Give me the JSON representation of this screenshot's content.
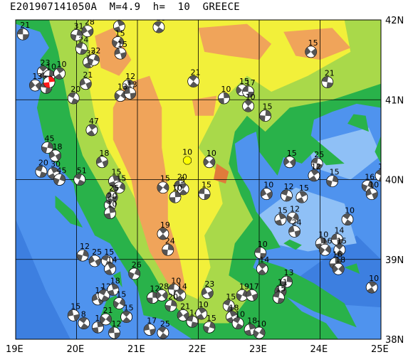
{
  "header": {
    "title": "E201907141050A  M=4.9  h=  10  GREECE"
  },
  "map": {
    "lon_min": 19,
    "lon_max": 25,
    "lat_min": 38,
    "lat_max": 42,
    "lon_labels": [
      "19E",
      "20E",
      "21E",
      "22E",
      "23E",
      "24E",
      "25E"
    ],
    "lat_labels": [
      "42N",
      "41N",
      "40N",
      "39N",
      "38N"
    ],
    "colors": {
      "deep_sea": "#3d7fe0",
      "sea": "#4f93ee",
      "shelf": "#8fc0f6",
      "coast": "#bcdcf9",
      "low": "#29b24a",
      "mid": "#a9d94a",
      "high": "#f2f03a",
      "mountain": "#f0a45a",
      "peak": "#e07b3b",
      "beachball_dark": "#555555",
      "beachball_light": "#ffffff",
      "highlight": "#ff1a1a",
      "epicenter": "#ffff00"
    },
    "beachballs": [
      {
        "lon": 19.12,
        "lat": 41.82,
        "label": "21"
      },
      {
        "lon": 19.45,
        "lat": 41.35,
        "label": "23"
      },
      {
        "lon": 19.55,
        "lat": 41.3,
        "label": "10"
      },
      {
        "lon": 19.32,
        "lat": 41.18,
        "label": "13"
      },
      {
        "lon": 19.5,
        "lat": 41.15,
        "label": "12"
      },
      {
        "lon": 19.72,
        "lat": 41.33,
        "label": "10"
      },
      {
        "lon": 20.0,
        "lat": 41.81,
        "label": "31"
      },
      {
        "lon": 20.18,
        "lat": 41.86,
        "label": "28"
      },
      {
        "lon": 20.08,
        "lat": 41.64,
        "label": "24"
      },
      {
        "lon": 20.2,
        "lat": 41.47,
        "label": "32"
      },
      {
        "lon": 20.28,
        "lat": 41.5,
        "label": "22"
      },
      {
        "lon": 20.15,
        "lat": 41.2,
        "label": "21"
      },
      {
        "lon": 19.95,
        "lat": 41.02,
        "label": "20"
      },
      {
        "lon": 20.7,
        "lat": 41.92,
        "label": "19"
      },
      {
        "lon": 20.68,
        "lat": 41.72,
        "label": "15"
      },
      {
        "lon": 20.72,
        "lat": 41.58,
        "label": "15"
      },
      {
        "lon": 21.35,
        "lat": 41.91,
        "label": "18"
      },
      {
        "lon": 20.85,
        "lat": 41.18,
        "label": "12"
      },
      {
        "lon": 20.72,
        "lat": 41.05,
        "label": "13"
      },
      {
        "lon": 20.88,
        "lat": 41.08,
        "label": "13"
      },
      {
        "lon": 21.92,
        "lat": 41.23,
        "label": "21"
      },
      {
        "lon": 22.42,
        "lat": 41.02,
        "label": "10"
      },
      {
        "lon": 22.72,
        "lat": 41.12,
        "label": "15"
      },
      {
        "lon": 22.82,
        "lat": 41.1,
        "label": "17"
      },
      {
        "lon": 22.82,
        "lat": 40.92,
        "label": "10"
      },
      {
        "lon": 23.1,
        "lat": 40.8,
        "label": "15"
      },
      {
        "lon": 23.85,
        "lat": 41.6,
        "label": "15"
      },
      {
        "lon": 24.12,
        "lat": 41.22,
        "label": "21"
      },
      {
        "lon": 20.25,
        "lat": 40.62,
        "label": "47"
      },
      {
        "lon": 19.52,
        "lat": 40.4,
        "label": "45"
      },
      {
        "lon": 19.65,
        "lat": 40.3,
        "label": "18"
      },
      {
        "lon": 19.42,
        "lat": 40.1,
        "label": "20"
      },
      {
        "lon": 19.62,
        "lat": 40.08,
        "label": "30"
      },
      {
        "lon": 19.72,
        "lat": 40.0,
        "label": "45"
      },
      {
        "lon": 20.42,
        "lat": 40.22,
        "label": "18"
      },
      {
        "lon": 20.05,
        "lat": 40.0,
        "label": "51"
      },
      {
        "lon": 20.62,
        "lat": 39.98,
        "label": "15"
      },
      {
        "lon": 20.7,
        "lat": 39.9,
        "label": "15"
      },
      {
        "lon": 20.58,
        "lat": 39.78,
        "label": "25"
      },
      {
        "lon": 20.55,
        "lat": 39.68,
        "label": "20"
      },
      {
        "lon": 20.55,
        "lat": 39.58,
        "label": "10"
      },
      {
        "lon": 21.42,
        "lat": 39.9,
        "label": "15"
      },
      {
        "lon": 21.7,
        "lat": 39.92,
        "label": "20"
      },
      {
        "lon": 21.75,
        "lat": 39.88,
        "label": "5"
      },
      {
        "lon": 21.62,
        "lat": 39.78,
        "label": "10"
      },
      {
        "lon": 22.18,
        "lat": 40.22,
        "label": "10"
      },
      {
        "lon": 22.1,
        "lat": 39.82,
        "label": "15"
      },
      {
        "lon": 21.42,
        "lat": 39.32,
        "label": "19"
      },
      {
        "lon": 21.5,
        "lat": 39.12,
        "label": "24"
      },
      {
        "lon": 23.5,
        "lat": 40.22,
        "label": "15"
      },
      {
        "lon": 23.95,
        "lat": 40.2,
        "label": "25"
      },
      {
        "lon": 23.9,
        "lat": 40.05,
        "label": "12"
      },
      {
        "lon": 24.2,
        "lat": 39.98,
        "label": "15"
      },
      {
        "lon": 23.12,
        "lat": 39.82,
        "label": "10"
      },
      {
        "lon": 23.45,
        "lat": 39.8,
        "label": "12"
      },
      {
        "lon": 23.7,
        "lat": 39.78,
        "label": "15"
      },
      {
        "lon": 24.78,
        "lat": 39.92,
        "label": "16"
      },
      {
        "lon": 24.85,
        "lat": 39.82,
        "label": "10"
      },
      {
        "lon": 25.0,
        "lat": 40.05,
        "label": "12"
      },
      {
        "lon": 23.35,
        "lat": 39.5,
        "label": "15"
      },
      {
        "lon": 23.55,
        "lat": 39.52,
        "label": "12"
      },
      {
        "lon": 23.58,
        "lat": 39.35,
        "label": "24"
      },
      {
        "lon": 24.45,
        "lat": 39.5,
        "label": "10"
      },
      {
        "lon": 24.02,
        "lat": 39.2,
        "label": "10"
      },
      {
        "lon": 24.08,
        "lat": 39.12,
        "label": "16"
      },
      {
        "lon": 24.28,
        "lat": 39.25,
        "label": "14"
      },
      {
        "lon": 24.32,
        "lat": 39.12,
        "label": "15"
      },
      {
        "lon": 24.25,
        "lat": 38.95,
        "label": "16"
      },
      {
        "lon": 24.3,
        "lat": 38.88,
        "label": "18"
      },
      {
        "lon": 23.02,
        "lat": 39.08,
        "label": "10"
      },
      {
        "lon": 23.05,
        "lat": 38.88,
        "label": "14"
      },
      {
        "lon": 23.45,
        "lat": 38.72,
        "label": "13"
      },
      {
        "lon": 23.35,
        "lat": 38.6,
        "label": "11"
      },
      {
        "lon": 23.32,
        "lat": 38.52,
        "label": "15"
      },
      {
        "lon": 24.85,
        "lat": 38.65,
        "label": "10"
      },
      {
        "lon": 20.1,
        "lat": 39.05,
        "label": "12"
      },
      {
        "lon": 20.3,
        "lat": 38.98,
        "label": "25"
      },
      {
        "lon": 20.5,
        "lat": 38.98,
        "label": "15"
      },
      {
        "lon": 20.55,
        "lat": 38.88,
        "label": "14"
      },
      {
        "lon": 20.95,
        "lat": 38.82,
        "label": "26"
      },
      {
        "lon": 20.35,
        "lat": 38.5,
        "label": "11"
      },
      {
        "lon": 20.45,
        "lat": 38.55,
        "label": "12"
      },
      {
        "lon": 20.6,
        "lat": 38.62,
        "label": "18"
      },
      {
        "lon": 20.7,
        "lat": 38.45,
        "label": "15"
      },
      {
        "lon": 19.95,
        "lat": 38.3,
        "label": "15"
      },
      {
        "lon": 20.12,
        "lat": 38.2,
        "label": "8"
      },
      {
        "lon": 20.35,
        "lat": 38.15,
        "label": "10"
      },
      {
        "lon": 20.48,
        "lat": 38.25,
        "label": "21"
      },
      {
        "lon": 20.62,
        "lat": 38.08,
        "label": "12"
      },
      {
        "lon": 20.82,
        "lat": 38.28,
        "label": "15"
      },
      {
        "lon": 21.25,
        "lat": 38.52,
        "label": "12"
      },
      {
        "lon": 21.4,
        "lat": 38.55,
        "label": "28"
      },
      {
        "lon": 21.6,
        "lat": 38.62,
        "label": "10"
      },
      {
        "lon": 21.7,
        "lat": 38.55,
        "label": "14"
      },
      {
        "lon": 21.55,
        "lat": 38.42,
        "label": "20"
      },
      {
        "lon": 21.75,
        "lat": 38.3,
        "label": "21"
      },
      {
        "lon": 21.9,
        "lat": 38.22,
        "label": "14"
      },
      {
        "lon": 22.05,
        "lat": 38.32,
        "label": "10"
      },
      {
        "lon": 22.18,
        "lat": 38.15,
        "label": "15"
      },
      {
        "lon": 22.15,
        "lat": 38.58,
        "label": "23"
      },
      {
        "lon": 22.5,
        "lat": 38.42,
        "label": "15"
      },
      {
        "lon": 22.55,
        "lat": 38.28,
        "label": "18"
      },
      {
        "lon": 22.72,
        "lat": 38.55,
        "label": "19"
      },
      {
        "lon": 22.88,
        "lat": 38.55,
        "label": "17"
      },
      {
        "lon": 22.65,
        "lat": 38.2,
        "label": "10"
      },
      {
        "lon": 22.85,
        "lat": 38.12,
        "label": "18"
      },
      {
        "lon": 23.0,
        "lat": 38.08,
        "label": "10"
      },
      {
        "lon": 21.2,
        "lat": 38.12,
        "label": "17"
      },
      {
        "lon": 21.42,
        "lat": 38.08,
        "label": "25"
      },
      {
        "lon": 19.55,
        "lat": 41.22,
        "label": "",
        "highlight": true
      }
    ],
    "epicenter": {
      "lon": 21.82,
      "lat": 40.24,
      "label": "10"
    }
  }
}
